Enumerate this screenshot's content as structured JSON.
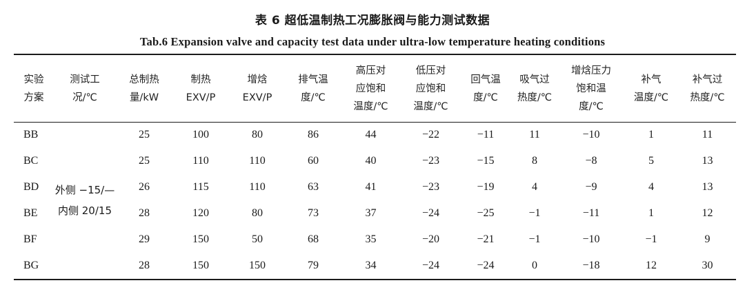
{
  "title_cn": "表 6 超低温制热工况膨胀阀与能力测试数据",
  "title_en": "Tab.6 Expansion valve and capacity test data under ultra-low temperature heating conditions",
  "columns": [
    {
      "lines": [
        "实验",
        "方案"
      ]
    },
    {
      "lines": [
        "测试工",
        "况/℃"
      ]
    },
    {
      "lines": [
        "总制热",
        "量/kW"
      ]
    },
    {
      "lines": [
        "制热",
        "EXV/P"
      ]
    },
    {
      "lines": [
        "增焓",
        "EXV/P"
      ]
    },
    {
      "lines": [
        "排气温",
        "度/℃"
      ]
    },
    {
      "lines": [
        "高压对",
        "应饱和",
        "温度/℃"
      ]
    },
    {
      "lines": [
        "低压对",
        "应饱和",
        "温度/℃"
      ]
    },
    {
      "lines": [
        "回气温",
        "度/℃"
      ]
    },
    {
      "lines": [
        "吸气过",
        "热度/℃"
      ]
    },
    {
      "lines": [
        "增焓压力",
        "饱和温",
        "度/℃"
      ]
    },
    {
      "lines": [
        "补气",
        "温度/℃"
      ]
    },
    {
      "lines": [
        "补气过",
        "热度/℃"
      ]
    }
  ],
  "condition_lines": [
    "外侧 −15/—",
    "内侧 20/15"
  ],
  "rows": [
    {
      "scheme": "BB",
      "values": [
        "25",
        "100",
        "80",
        "86",
        "44",
        "−22",
        "−11",
        "11",
        "−10",
        "1",
        "11"
      ]
    },
    {
      "scheme": "BC",
      "values": [
        "25",
        "110",
        "110",
        "60",
        "40",
        "−23",
        "−15",
        "8",
        "−8",
        "5",
        "13"
      ]
    },
    {
      "scheme": "BD",
      "values": [
        "26",
        "115",
        "110",
        "63",
        "41",
        "−23",
        "−19",
        "4",
        "−9",
        "4",
        "13"
      ]
    },
    {
      "scheme": "BE",
      "values": [
        "28",
        "120",
        "80",
        "73",
        "37",
        "−24",
        "−25",
        "−1",
        "−11",
        "1",
        "12"
      ]
    },
    {
      "scheme": "BF",
      "values": [
        "29",
        "150",
        "50",
        "68",
        "35",
        "−20",
        "−21",
        "−1",
        "−10",
        "−1",
        "9"
      ]
    },
    {
      "scheme": "BG",
      "values": [
        "28",
        "150",
        "150",
        "79",
        "34",
        "−24",
        "−24",
        "0",
        "−18",
        "12",
        "30"
      ]
    }
  ]
}
